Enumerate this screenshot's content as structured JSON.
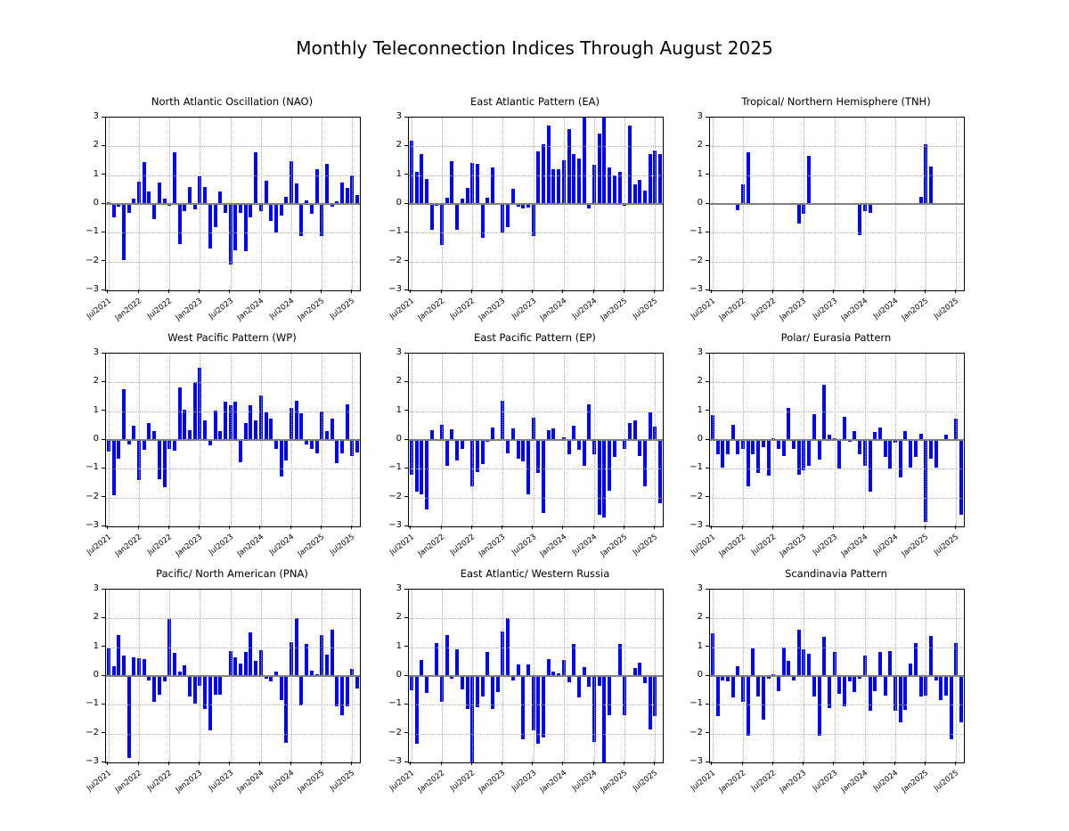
{
  "figure": {
    "suptitle": "Monthly Teleconnection Indices Through August 2025",
    "background": "#ffffff"
  },
  "style": {
    "bar_color": "#0000ff",
    "zero_line_color": "#808080",
    "grid_color": "#b0b0b0",
    "axis_color": "#000000"
  },
  "axis": {
    "ylim": [
      -3,
      3
    ],
    "yticks": [
      3,
      2,
      1,
      0,
      -1,
      -2,
      -3
    ],
    "ytick_labels": [
      "3",
      "2",
      "1",
      "0",
      "−1",
      "−2",
      "−3"
    ],
    "xtick_labels": [
      "Jul2021",
      "Jan2022",
      "Jul2022",
      "Jan2023",
      "Jul2023",
      "Jan2024",
      "Jul2024",
      "Jan2025",
      "Jul2025"
    ],
    "xtick_month_index": [
      0,
      6,
      12,
      18,
      24,
      30,
      36,
      42,
      48
    ],
    "grid_style": "dotted",
    "zero_line": true
  },
  "x_months": [
    "Jul2021",
    "Aug2021",
    "Sep2021",
    "Oct2021",
    "Nov2021",
    "Dec2021",
    "Jan2022",
    "Feb2022",
    "Mar2022",
    "Apr2022",
    "May2022",
    "Jun2022",
    "Jul2022",
    "Aug2022",
    "Sep2022",
    "Oct2022",
    "Nov2022",
    "Dec2022",
    "Jan2023",
    "Feb2023",
    "Mar2023",
    "Apr2023",
    "May2023",
    "Jun2023",
    "Jul2023",
    "Aug2023",
    "Sep2023",
    "Oct2023",
    "Nov2023",
    "Dec2023",
    "Jan2024",
    "Feb2024",
    "Mar2024",
    "Apr2024",
    "May2024",
    "Jun2024",
    "Jul2024",
    "Aug2024",
    "Sep2024",
    "Oct2024",
    "Nov2024",
    "Dec2024",
    "Jan2025",
    "Feb2025",
    "Mar2025",
    "Apr2025",
    "May2025",
    "Jun2025",
    "Jul2025",
    "Aug2025"
  ],
  "chart_data": [
    {
      "type": "bar",
      "title": "North Atlantic Oscillation (NAO)",
      "ylim": [
        -3,
        3
      ],
      "values": [
        0.07,
        -0.45,
        -0.08,
        -1.95,
        -0.3,
        0.2,
        0.78,
        1.45,
        0.42,
        -0.52,
        0.73,
        0.2,
        -0.05,
        1.78,
        -1.4,
        -0.25,
        0.6,
        -0.2,
        0.95,
        0.6,
        -1.55,
        -0.8,
        0.42,
        -0.3,
        -2.1,
        -1.6,
        -0.3,
        -1.65,
        -0.45,
        1.8,
        -0.25,
        0.8,
        -0.6,
        -1.0,
        -0.4,
        0.25,
        1.5,
        0.7,
        -1.1,
        0.12,
        -0.35,
        1.2,
        -1.1,
        1.38,
        -0.08,
        0.08,
        0.75,
        0.55,
        1.0,
        0.3
      ]
    },
    {
      "type": "bar",
      "title": "East Atlantic Pattern (EA)",
      "ylim": [
        -3,
        3
      ],
      "values": [
        2.2,
        1.1,
        1.72,
        0.87,
        -0.9,
        -0.05,
        -1.43,
        0.22,
        1.47,
        -0.9,
        0.2,
        0.55,
        1.42,
        1.4,
        -1.17,
        0.22,
        1.28,
        0.0,
        -1.0,
        -0.8,
        0.52,
        -0.1,
        -0.15,
        -0.12,
        -1.1,
        1.82,
        2.08,
        2.73,
        1.2,
        1.22,
        1.53,
        2.6,
        1.72,
        1.57,
        3.0,
        -0.15,
        1.35,
        2.43,
        3.0,
        1.28,
        0.98,
        1.12,
        -0.05,
        2.73,
        0.68,
        0.83,
        0.45,
        1.73,
        1.85,
        1.72
      ]
    },
    {
      "type": "bar",
      "title": "Tropical/ Northern Hemisphere (TNH)",
      "ylim": [
        -3,
        3
      ],
      "values": [
        0,
        0,
        0,
        0,
        0,
        -0.22,
        0.68,
        1.78,
        0,
        0,
        0,
        0,
        0,
        0,
        0,
        0,
        0,
        -0.68,
        -0.35,
        1.68,
        0,
        0,
        0,
        0,
        0,
        0,
        0,
        0,
        0,
        -1.07,
        -0.25,
        -0.3,
        0,
        0,
        0,
        0,
        0,
        0,
        0,
        0,
        0,
        0.25,
        2.07,
        1.3,
        0,
        0,
        0,
        0,
        0,
        0
      ]
    },
    {
      "type": "bar",
      "title": "West Pacific Pattern (WP)",
      "ylim": [
        -3,
        3
      ],
      "values": [
        -0.4,
        -1.93,
        -0.65,
        1.75,
        -0.15,
        0.48,
        -1.4,
        -0.35,
        0.58,
        0.32,
        -1.35,
        -1.63,
        -0.3,
        -0.38,
        1.82,
        1.05,
        0.35,
        2.0,
        2.52,
        0.68,
        -0.2,
        1.02,
        0.32,
        1.33,
        1.2,
        1.33,
        -0.78,
        0.6,
        1.2,
        0.67,
        1.55,
        0.97,
        0.75,
        -0.3,
        -1.28,
        -0.7,
        1.1,
        1.35,
        0.92,
        -0.15,
        -0.3,
        -0.45,
        1.0,
        0.3,
        0.75,
        -0.8,
        -0.47,
        1.25,
        -0.55,
        -0.42
      ]
    },
    {
      "type": "bar",
      "title": "East Pacific Pattern (EP)",
      "ylim": [
        -3,
        3
      ],
      "values": [
        -1.2,
        -1.8,
        -1.9,
        -2.4,
        0.35,
        0.0,
        0.52,
        -0.9,
        0.37,
        -0.7,
        -0.32,
        0.0,
        -1.62,
        -1.1,
        -0.83,
        -0.05,
        0.42,
        0.0,
        1.37,
        -0.45,
        0.4,
        -0.65,
        -0.75,
        -1.9,
        0.78,
        -1.15,
        -2.55,
        0.33,
        0.4,
        0.0,
        0.08,
        -0.48,
        0.5,
        -0.35,
        -0.9,
        1.25,
        -0.5,
        -2.6,
        -2.7,
        -1.75,
        -0.6,
        0.0,
        -0.3,
        0.58,
        0.68,
        -0.55,
        -1.62,
        0.95,
        0.45,
        -2.2
      ]
    },
    {
      "type": "bar",
      "title": "Polar/ Eurasia Pattern",
      "ylim": [
        -3,
        3
      ],
      "values": [
        0.88,
        -0.48,
        -0.95,
        -0.5,
        0.52,
        -0.5,
        -0.3,
        -1.6,
        -0.5,
        -1.15,
        -0.25,
        -1.25,
        0.05,
        -0.3,
        -0.55,
        1.12,
        -0.3,
        -1.2,
        -1.05,
        -0.9,
        0.9,
        -0.68,
        1.92,
        0.2,
        0.05,
        -1.0,
        0.8,
        -0.05,
        0.3,
        -0.5,
        -0.9,
        -1.8,
        0.28,
        0.42,
        -0.6,
        -1.0,
        -0.1,
        -1.3,
        0.3,
        -0.95,
        -0.6,
        0.22,
        -2.85,
        -0.65,
        -0.95,
        0.0,
        0.2,
        0.0,
        0.75,
        -2.6
      ]
    },
    {
      "type": "bar",
      "title": "Pacific/ North American (PNA)",
      "ylim": [
        -3,
        3
      ],
      "values": [
        0.95,
        0.33,
        1.42,
        0.7,
        -2.83,
        0.65,
        0.62,
        0.58,
        -0.15,
        -0.9,
        -0.65,
        -0.2,
        1.97,
        0.8,
        0.15,
        0.37,
        -0.7,
        -0.95,
        -0.35,
        -1.15,
        -1.88,
        -0.65,
        -0.65,
        0.0,
        0.87,
        0.65,
        0.43,
        0.85,
        1.52,
        0.52,
        0.9,
        -0.1,
        -0.2,
        0.15,
        -0.85,
        -2.33,
        1.17,
        2.0,
        -1.03,
        1.1,
        0.2,
        0.05,
        1.42,
        0.73,
        1.6,
        -1.05,
        -1.35,
        -1.05,
        0.25,
        -0.42
      ]
    },
    {
      "type": "bar",
      "title": "East Atlantic/ Western Russia",
      "ylim": [
        -3,
        3
      ],
      "values": [
        -0.5,
        -2.35,
        0.57,
        -0.6,
        0.0,
        1.13,
        -0.9,
        1.42,
        -0.08,
        0.92,
        -0.45,
        -1.15,
        -3.0,
        -1.07,
        -0.72,
        0.83,
        -1.15,
        -0.55,
        1.55,
        2.0,
        -0.15,
        0.4,
        -2.2,
        0.4,
        -1.88,
        -2.35,
        -2.13,
        0.6,
        0.15,
        0.1,
        0.57,
        -0.22,
        1.1,
        -0.75,
        0.3,
        -0.38,
        -2.3,
        -0.33,
        -3.0,
        -1.35,
        0.0,
        1.1,
        -1.35,
        0.0,
        0.28,
        0.45,
        -0.25,
        -1.85,
        -1.4,
        0.0
      ]
    },
    {
      "type": "bar",
      "title": "Scandinavia Pattern",
      "ylim": [
        -3,
        3
      ],
      "values": [
        1.48,
        -1.4,
        -0.15,
        -0.2,
        -0.73,
        0.35,
        -0.9,
        -2.07,
        0.97,
        -0.72,
        -1.5,
        -0.1,
        0.05,
        -0.52,
        1.0,
        0.53,
        -0.17,
        1.6,
        0.92,
        0.77,
        -0.72,
        -2.08,
        1.35,
        -1.1,
        0.82,
        -0.62,
        -1.05,
        -0.18,
        -0.55,
        -0.1,
        0.7,
        -1.22,
        -0.52,
        0.85,
        -0.68,
        0.88,
        -1.2,
        -1.6,
        -1.17,
        0.43,
        1.13,
        -0.72,
        -0.68,
        1.38,
        -0.15,
        -0.85,
        -0.68,
        -2.2,
        1.13,
        -1.6
      ]
    }
  ]
}
